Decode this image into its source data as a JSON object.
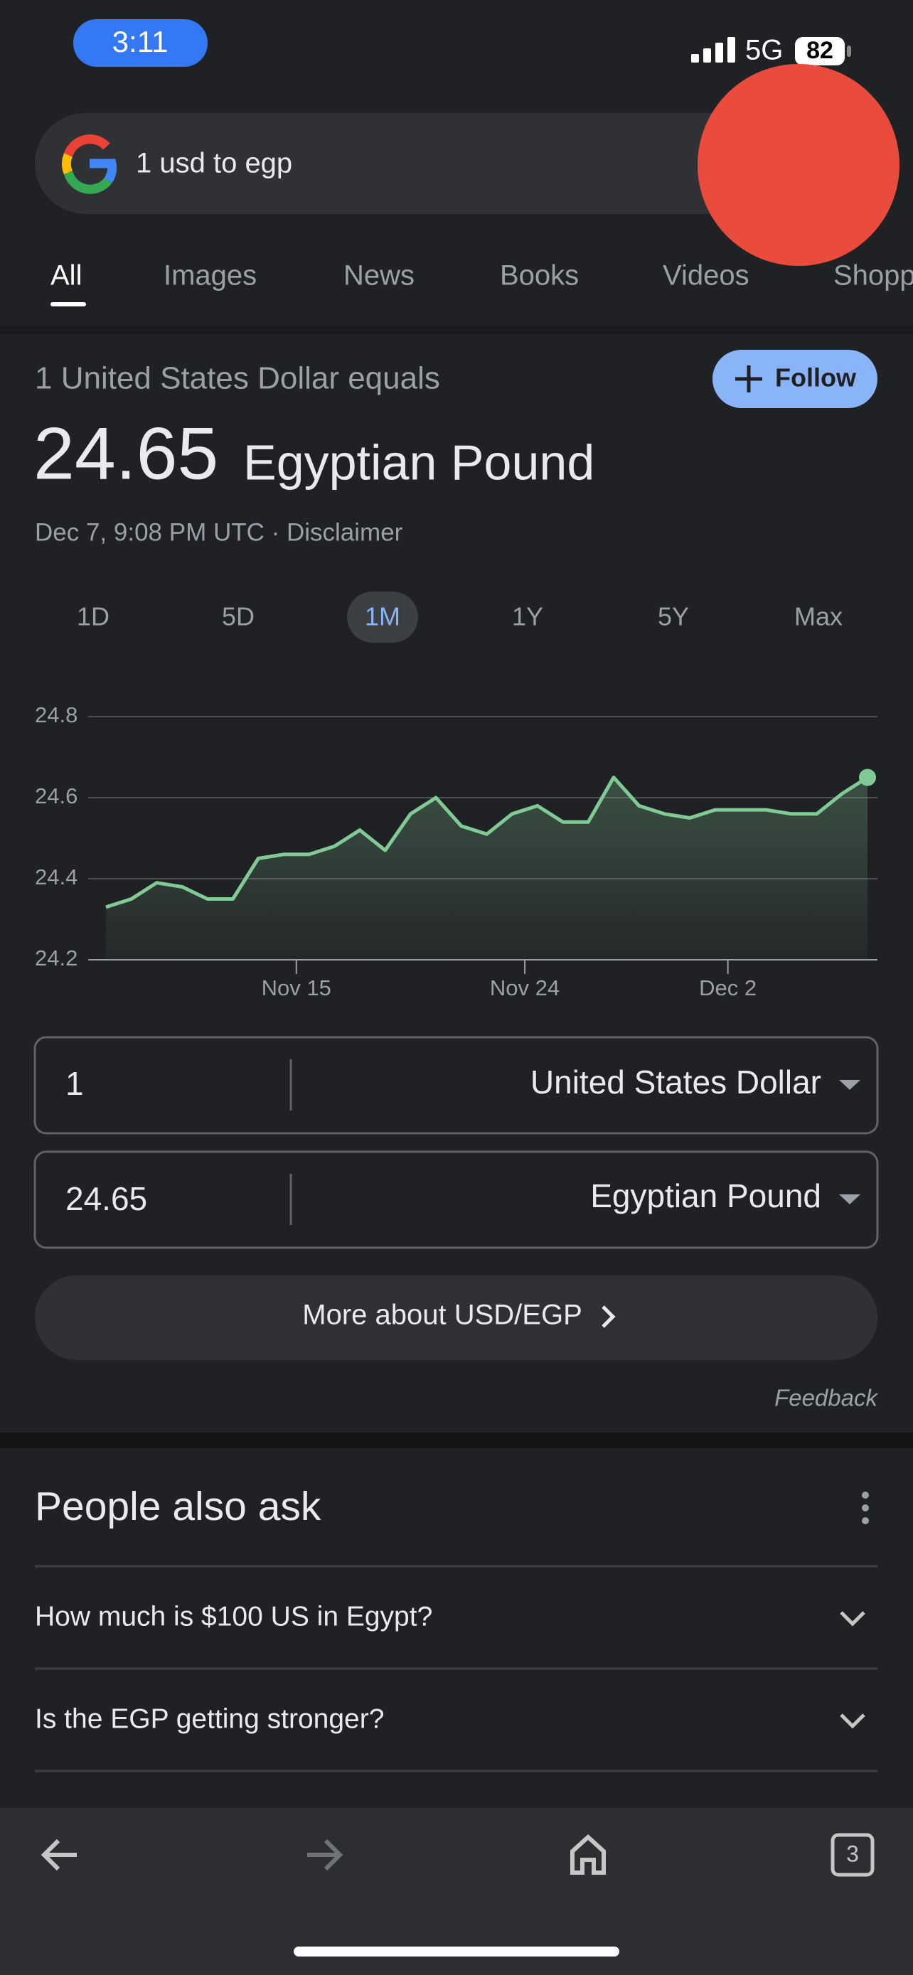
{
  "status_bar": {
    "time": "3:11",
    "network": "5G",
    "battery": "82"
  },
  "search": {
    "query": "1 usd to egp"
  },
  "tabs": {
    "items": [
      "All",
      "Images",
      "News",
      "Books",
      "Videos",
      "Shopping"
    ],
    "active": 0
  },
  "converter": {
    "equals": "1 United States Dollar equals",
    "follow": "Follow",
    "rate": "24.65",
    "target_currency": "Egyptian Pound",
    "timestamp": "Dec 7, 9:08 PM UTC · Disclaimer",
    "ranges": [
      "1D",
      "5D",
      "1M",
      "1Y",
      "5Y",
      "Max"
    ],
    "active_range": 2,
    "from_amount": "1",
    "from_currency": "United States Dollar",
    "to_amount": "24.65",
    "to_currency": "Egyptian Pound",
    "more": "More about USD/EGP",
    "feedback": "Feedback"
  },
  "chart_data": {
    "type": "line",
    "categories": [
      null,
      null,
      null,
      null,
      null,
      null,
      null,
      null,
      "Nov 15",
      null,
      null,
      null,
      null,
      null,
      null,
      null,
      null,
      "Nov 24",
      null,
      null,
      null,
      null,
      null,
      null,
      null,
      "Dec 2",
      null,
      null,
      null,
      null,
      null
    ],
    "values": [
      24.33,
      24.35,
      24.39,
      24.38,
      24.35,
      24.35,
      24.45,
      24.46,
      24.46,
      24.48,
      24.52,
      24.47,
      24.56,
      24.6,
      24.53,
      24.51,
      24.56,
      24.58,
      24.54,
      24.54,
      24.65,
      24.58,
      24.56,
      24.55,
      24.57,
      24.57,
      24.57,
      24.56,
      24.56,
      24.61,
      24.65
    ],
    "color": "#81c995",
    "ylim": [
      24.2,
      24.8
    ],
    "yticks": [
      24.2,
      24.4,
      24.6,
      24.8
    ],
    "grid": true
  },
  "people_also_ask": {
    "title": "People also ask",
    "questions": [
      "How much is $100 US in Egypt?",
      "Is the EGP getting stronger?"
    ]
  },
  "bottom_bar": {
    "tab_count": "3"
  }
}
